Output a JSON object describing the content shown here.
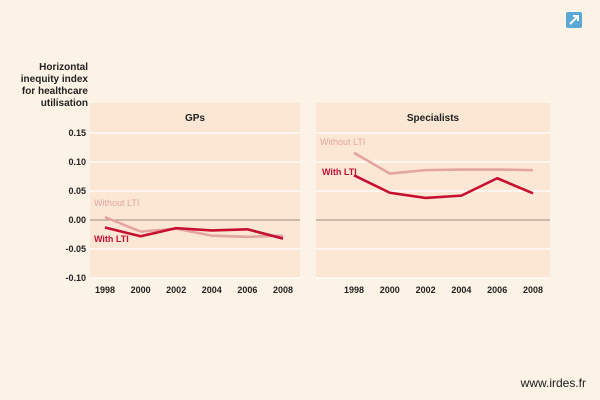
{
  "colors": {
    "background": "#fdf2e6",
    "plot_background": "#fbe7d4",
    "with_lti": "#c8102e",
    "without_lti": "#e4a5a0",
    "grid": "#ffffff",
    "zero_line": "#9a8b80"
  },
  "icons": {
    "corner": "external-link-arrow-icon"
  },
  "watermark": "www.irdes.fr",
  "chart_data": [
    {
      "type": "line",
      "title": "GPs",
      "ylabel": "Horizontal inequity index for healthcare utilisation",
      "ylabel_lines": [
        "Horizontal",
        "inequity index",
        "for healthcare",
        "utilisation"
      ],
      "x": [
        1998,
        2000,
        2002,
        2004,
        2006,
        2008
      ],
      "ylim": [
        -0.1,
        0.15
      ],
      "yticks": [
        "0.15",
        "0.10",
        "0.05",
        "0.00",
        "-0.05",
        "-0.10"
      ],
      "ytick_values": [
        0.15,
        0.1,
        0.05,
        0.0,
        -0.05,
        -0.1
      ],
      "series": [
        {
          "name": "Without LTI",
          "color_key": "without_lti",
          "values": [
            0.005,
            -0.02,
            -0.015,
            -0.027,
            -0.029,
            -0.027
          ]
        },
        {
          "name": "With LTI",
          "color_key": "with_lti",
          "values": [
            -0.013,
            -0.028,
            -0.014,
            -0.018,
            -0.016,
            -0.032
          ]
        }
      ]
    },
    {
      "type": "line",
      "title": "Specialists",
      "x": [
        1998,
        2000,
        2002,
        2004,
        2006,
        2008
      ],
      "ylim": [
        -0.1,
        0.15
      ],
      "series": [
        {
          "name": "Without LTI",
          "color_key": "without_lti",
          "values": [
            0.116,
            0.08,
            0.086,
            0.087,
            0.087,
            0.086
          ]
        },
        {
          "name": "With LTI",
          "color_key": "with_lti",
          "values": [
            0.077,
            0.047,
            0.038,
            0.042,
            0.072,
            0.046
          ]
        }
      ]
    }
  ]
}
